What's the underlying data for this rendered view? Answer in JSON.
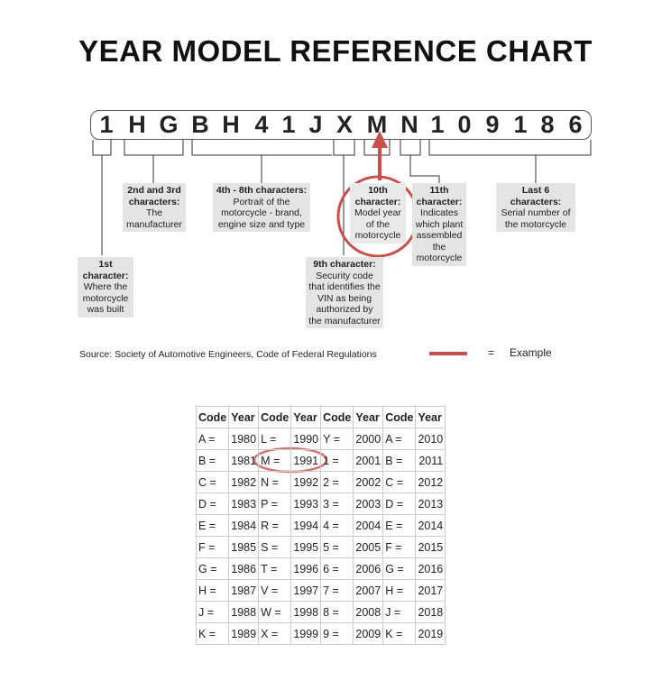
{
  "title": "YEAR MODEL REFERENCE CHART",
  "vin": [
    "1",
    "H",
    "G",
    "B",
    "H",
    "4",
    "1",
    "J",
    "X",
    "M",
    "N",
    "1",
    "0",
    "9",
    "1",
    "8",
    "6"
  ],
  "labels": {
    "c1": {
      "head": "1st character:",
      "body": "Where the motorcycle was built"
    },
    "c23": {
      "head": "2nd and 3rd characters:",
      "body": "The manufacturer"
    },
    "c48": {
      "head": "4th - 8th characters:",
      "body": "Portrait of the motorcycle - brand, engine size and type"
    },
    "c9": {
      "head": "9th character:",
      "body": "Security code that identifies the VIN as being authorized by the manufacturer"
    },
    "c10": {
      "head": "10th character:",
      "body": "Model year of the motorcycle"
    },
    "c11": {
      "head": "11th character:",
      "body": "Indicates which plant assembled the motorcycle"
    },
    "last6": {
      "head": "Last 6 characters:",
      "body": "Serial number of the motorcycle"
    }
  },
  "source": "Source:  Society of Automotive Engineers, Code of Federal Regulations",
  "legend": {
    "equals": "=",
    "label": "Example",
    "color": "#c9504a"
  },
  "table": {
    "headers": [
      "Code",
      "Year",
      "Code",
      "Year",
      "Code",
      "Year",
      "Code",
      "Year"
    ],
    "rows": [
      [
        "A =",
        "1980",
        "L =",
        "1990",
        "Y =",
        "2000",
        "A =",
        "2010"
      ],
      [
        "B =",
        "1981",
        "M =",
        "1991",
        "1 =",
        "2001",
        "B =",
        "2011"
      ],
      [
        "C =",
        "1982",
        "N =",
        "1992",
        "2 =",
        "2002",
        "C =",
        "2012"
      ],
      [
        "D =",
        "1983",
        "P =",
        "1993",
        "3 =",
        "2003",
        "D =",
        "2013"
      ],
      [
        "E =",
        "1984",
        "R =",
        "1994",
        "4 =",
        "2004",
        "E =",
        "2014"
      ],
      [
        "F =",
        "1985",
        "S =",
        "1995",
        "5 =",
        "2005",
        "F =",
        "2015"
      ],
      [
        "G =",
        "1986",
        "T =",
        "1996",
        "6 =",
        "2006",
        "G =",
        "2016"
      ],
      [
        "H =",
        "1987",
        "V =",
        "1997",
        "7 =",
        "2007",
        "H =",
        "2017"
      ],
      [
        "J =",
        "1988",
        "W =",
        "1998",
        "8 =",
        "2008",
        "J =",
        "2018"
      ],
      [
        "K =",
        "1989",
        "X =",
        "1999",
        "9 =",
        "2009",
        "K =",
        "2019"
      ]
    ]
  }
}
